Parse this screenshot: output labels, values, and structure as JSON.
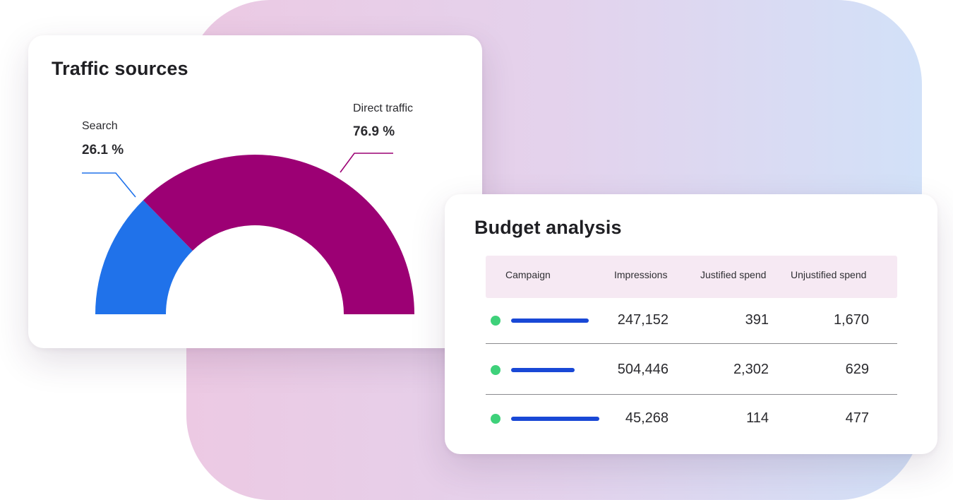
{
  "traffic": {
    "title": "Traffic sources",
    "chart_data": {
      "type": "pie",
      "style": "half-donut",
      "slices": [
        {
          "label": "Search",
          "value": 26.1,
          "value_text": "26.1 %",
          "color": "#2072ea"
        },
        {
          "label": "Direct traffic",
          "value": 76.9,
          "value_text": "76.9 %",
          "color": "#9c0074"
        }
      ]
    }
  },
  "budget": {
    "title": "Budget analysis",
    "columns": [
      "Campaign",
      "Impressions",
      "Justified spend",
      "Unjustified spend"
    ],
    "rows": [
      {
        "campaign_bar_fraction": 0.88,
        "status_color": "#3ed17a",
        "impressions": "247,152",
        "justified": "391",
        "unjustified": "1,670"
      },
      {
        "campaign_bar_fraction": 0.72,
        "status_color": "#3ed17a",
        "impressions": "504,446",
        "justified": "2,302",
        "unjustified": "629"
      },
      {
        "campaign_bar_fraction": 1.0,
        "status_color": "#3ed17a",
        "impressions": "45,268",
        "justified": "114",
        "unjustified": "477"
      }
    ]
  },
  "colors": {
    "search": "#2072ea",
    "direct": "#9c0074",
    "status": "#3ed17a",
    "campaign_bar": "#1948d6",
    "header_bg": "#f6e9f3"
  }
}
